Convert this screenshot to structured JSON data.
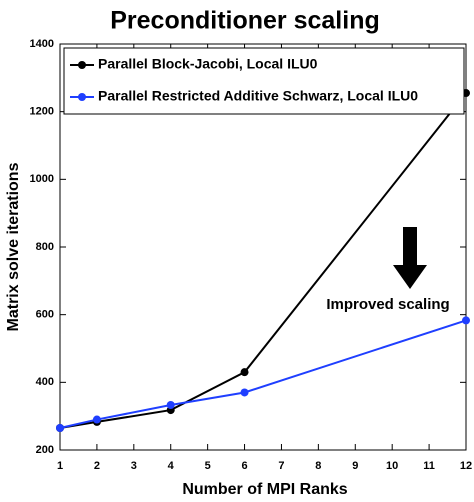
{
  "chart_data": {
    "type": "line",
    "title": "Preconditioner scaling",
    "xlabel": "Number of MPI Ranks",
    "ylabel": "Matrix solve iterations",
    "annotation": "Improved scaling",
    "xlim": [
      1,
      12
    ],
    "xticks": [
      1,
      2,
      3,
      4,
      5,
      6,
      7,
      8,
      9,
      10,
      11,
      12
    ],
    "ylim": [
      200,
      1400
    ],
    "yticks": [
      200,
      400,
      600,
      800,
      1000,
      1200,
      1400
    ],
    "legend": "upper left",
    "series": [
      {
        "name": "Parallel Block-Jacobi, Local ILU0",
        "color": "#000000",
        "x": [
          1,
          2,
          4,
          6,
          12
        ],
        "values": [
          265,
          283,
          318,
          430,
          1255
        ]
      },
      {
        "name": "Parallel Restricted Additive Schwarz, Local ILU0",
        "color": "#1f3fff",
        "x": [
          1,
          2,
          4,
          6,
          12
        ],
        "values": [
          265,
          290,
          333,
          370,
          583
        ]
      }
    ]
  }
}
